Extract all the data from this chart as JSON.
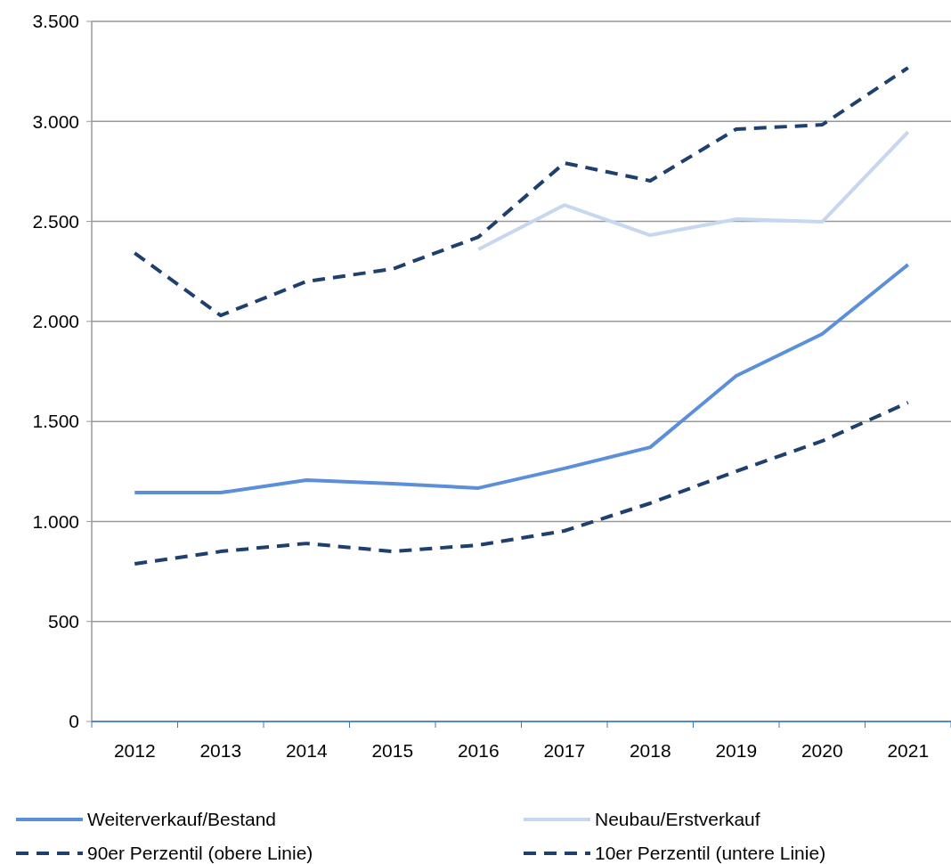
{
  "chart_data": {
    "type": "line",
    "categories": [
      "2012",
      "2013",
      "2014",
      "2015",
      "2016",
      "2017",
      "2018",
      "2019",
      "2020",
      "2021"
    ],
    "series": [
      {
        "name": "Weiterverkauf/Bestand",
        "color": "#5b8fd9",
        "line_style": "solid",
        "values": [
          1144,
          1144,
          1207,
          1189,
          1167,
          1265,
          1371,
          1728,
          1937,
          2284
        ]
      },
      {
        "name": "Neubau/Erstverkauf",
        "color": "#c6d7ee",
        "line_style": "solid",
        "values": [
          null,
          null,
          null,
          null,
          2360,
          2582,
          2431,
          2511,
          2498,
          2947
        ]
      },
      {
        "name": "90er Perzentil (obere Linie)",
        "color": "#1f3f6e",
        "line_style": "dashed",
        "values": [
          2342,
          2030,
          2200,
          2262,
          2422,
          2792,
          2703,
          2961,
          2983,
          3268
        ]
      },
      {
        "name": "10er Perzentil (untere Linie)",
        "color": "#1f3f6e",
        "line_style": "dashed",
        "values": [
          788,
          850,
          890,
          850,
          882,
          953,
          1091,
          1251,
          1402,
          1594
        ]
      }
    ],
    "ylim": [
      0,
      3500
    ],
    "yticks": [
      0,
      500,
      {
        "value": 1000,
        "label": "1.000"
      },
      {
        "value": 1500,
        "label": "1.500"
      },
      {
        "value": 2000,
        "label": "2.000"
      },
      {
        "value": 2500,
        "label": "2.500"
      },
      {
        "value": 3000,
        "label": "3.000"
      },
      {
        "value": 3500,
        "label": "3.500"
      }
    ],
    "grid": "y",
    "legend": "bottom",
    "marker": "none"
  }
}
